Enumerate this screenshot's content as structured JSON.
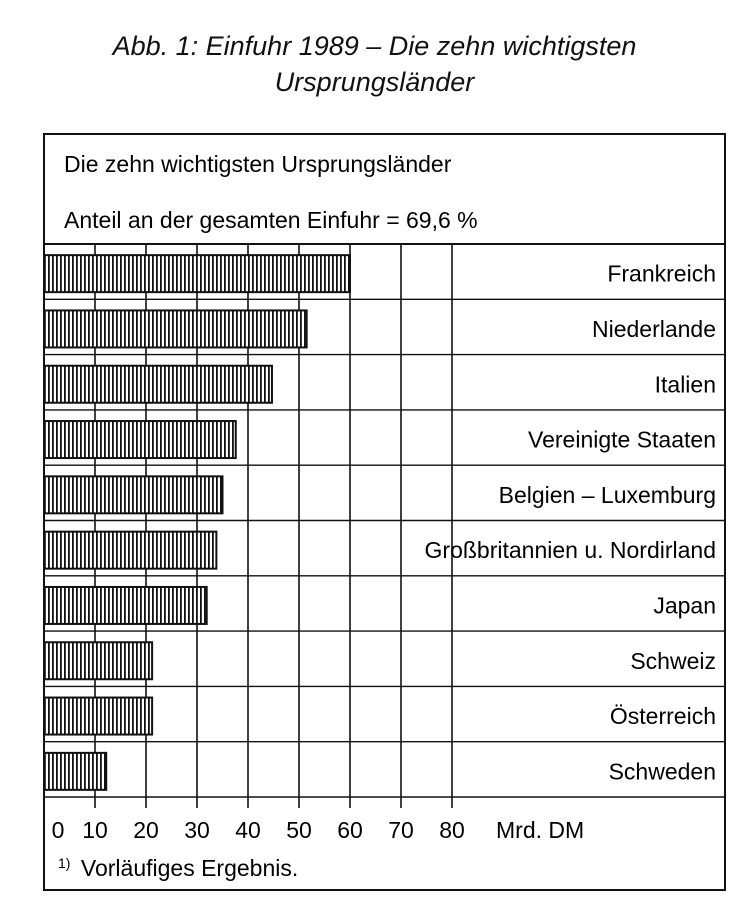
{
  "figure": {
    "title_line1": "Abb. 1: Einfuhr 1989 – Die zehn wichtigsten",
    "title_line2": "Ursprungsländer",
    "header_line1": "Die zehn wichtigsten Ursprungsländer",
    "header_line2": "Anteil an der gesamten Einfuhr = 69,6 %",
    "unit_label": "Mrd. DM",
    "footnote_marker": "1)",
    "footnote_text": "Vorläufiges Ergebnis."
  },
  "chart_data": {
    "type": "bar",
    "orientation": "horizontal",
    "categories": [
      "Frankreich",
      "Niederlande",
      "Italien",
      "Vereinigte Staaten",
      "Belgien – Luxemburg",
      "Großbritannien u. Nordirland",
      "Japan",
      "Schweiz",
      "Österreich",
      "Schweden"
    ],
    "values": [
      60.0,
      51.5,
      44.7,
      37.6,
      35.0,
      33.8,
      31.9,
      21.2,
      21.2,
      12.2
    ],
    "xlim": [
      0,
      80
    ],
    "xticks": [
      0,
      10,
      20,
      30,
      40,
      50,
      60,
      70,
      80
    ],
    "xlabel": "Mrd. DM",
    "grid": true,
    "colors": {
      "bar_fill": "#ffffff",
      "bar_hatch": "#111111",
      "frame": "#111111"
    }
  }
}
